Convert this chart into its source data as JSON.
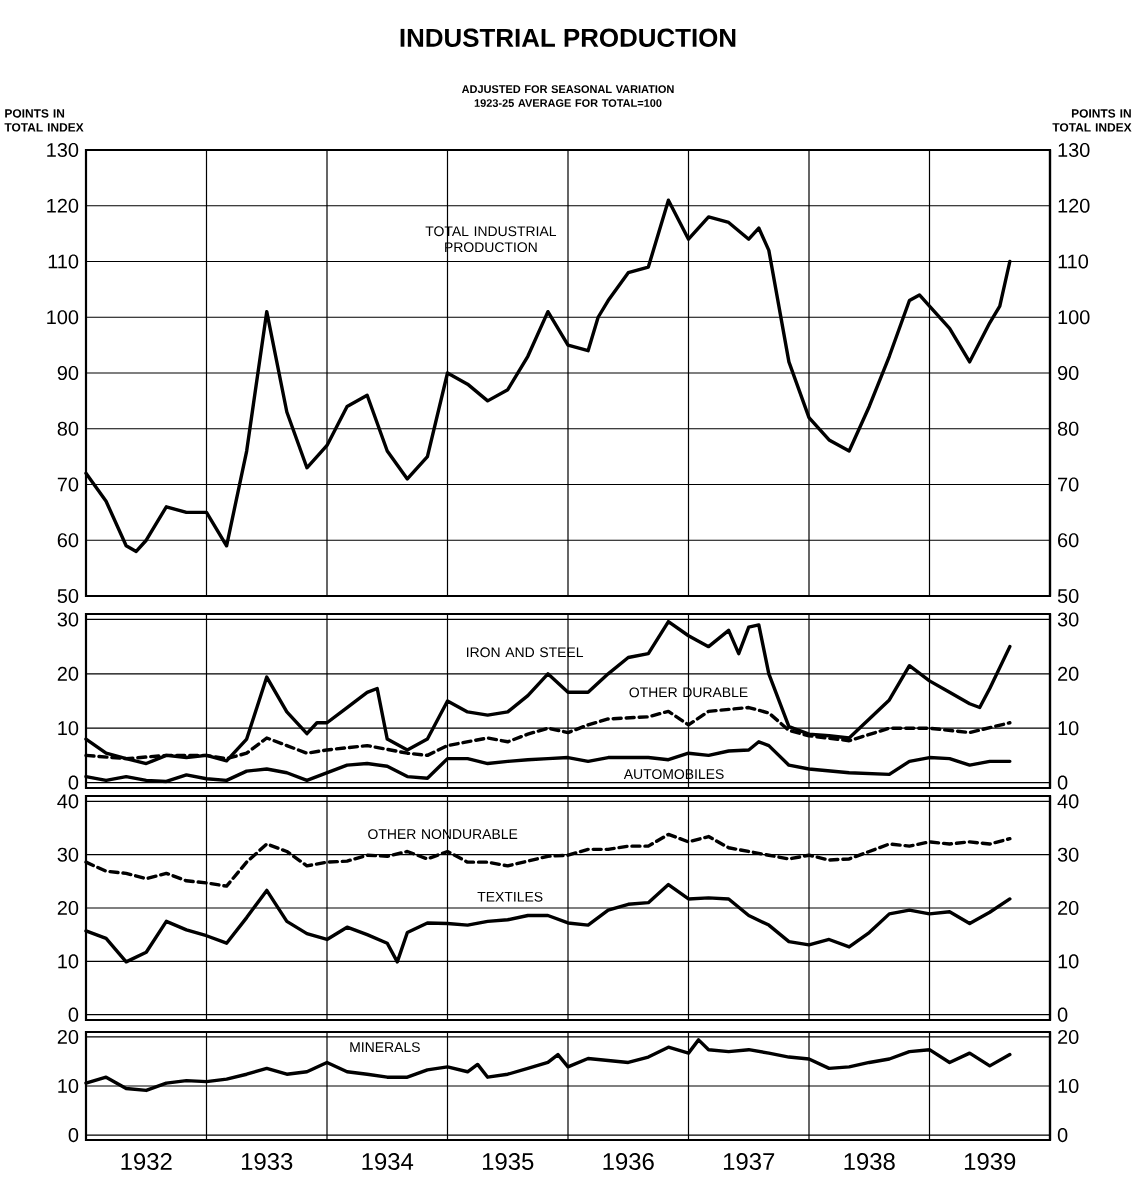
{
  "chart_data": [
    {
      "type": "line",
      "title": "INDUSTRIAL PRODUCTION",
      "subtitle": "ADJUSTED FOR SEASONAL VARIATION 1923-25 AVERAGE FOR TOTAL=100",
      "ylabel": "POINTS IN TOTAL INDEX",
      "y2label": "POINTS IN TOTAL INDEX",
      "grid": true,
      "tick_labels": "y",
      "xlim": [
        "1932-01-01",
        "1940-01-01"
      ],
      "xticks": [
        {
          "value": "1933-01-01",
          "label": null
        },
        {
          "value": "1934-01-01",
          "label": null
        },
        {
          "value": "1935-01-01",
          "label": null
        },
        {
          "value": "1936-01-01",
          "label": null
        },
        {
          "value": "1937-01-01",
          "label": null
        },
        {
          "value": "1938-01-01",
          "label": null
        },
        {
          "value": "1939-01-01",
          "label": null
        }
      ],
      "ylim": [
        50,
        130
      ],
      "yticks": [
        50,
        60,
        70,
        80,
        90,
        100,
        110,
        120,
        130
      ],
      "y2lim": [
        50,
        130
      ],
      "y2ticks": [
        50,
        60,
        70,
        80,
        90,
        100,
        110,
        120,
        130
      ],
      "series": [
        {
          "name": "TOTAL INDUSTRIAL PRODUCTION",
          "color": "#000000",
          "line_style": "solid",
          "x": [
            "1932-01",
            "1932-03",
            "1932-05",
            "1932-06",
            "1932-07",
            "1932-09",
            "1932-11",
            "1933-01",
            "1933-03",
            "1933-05",
            "1933-07",
            "1933-09",
            "1933-11",
            "1934-01",
            "1934-03",
            "1934-05",
            "1934-07",
            "1934-09",
            "1934-11",
            "1935-01",
            "1935-03",
            "1935-05",
            "1935-07",
            "1935-09",
            "1935-11",
            "1936-01",
            "1936-03",
            "1936-04",
            "1936-05",
            "1936-07",
            "1936-09",
            "1936-11",
            "1937-01",
            "1937-03",
            "1937-05",
            "1937-07",
            "1937-08",
            "1937-09",
            "1937-11",
            "1938-01",
            "1938-03",
            "1938-05",
            "1938-07",
            "1938-09",
            "1938-11",
            "1938-12",
            "1939-01",
            "1939-03",
            "1939-05",
            "1939-07",
            "1939-08",
            "1939-09"
          ],
          "values": [
            72,
            67,
            59,
            58,
            60,
            66,
            65,
            65,
            59,
            76,
            101,
            83,
            73,
            77,
            84,
            86,
            76,
            71,
            75,
            90,
            88,
            85,
            87,
            93,
            101,
            95,
            94,
            100,
            103,
            108,
            109,
            121,
            114,
            118,
            117,
            114,
            116,
            112,
            92,
            82,
            78,
            76,
            84,
            93,
            103,
            104,
            102,
            98,
            92,
            99,
            102,
            110
          ]
        }
      ]
    },
    {
      "type": "line",
      "grid": true,
      "tick_labels": "y",
      "xlim": [
        "1932-01-01",
        "1940-01-01"
      ],
      "xticks": [
        {
          "value": "1933-01-01",
          "label": null
        },
        {
          "value": "1934-01-01",
          "label": null
        },
        {
          "value": "1935-01-01",
          "label": null
        },
        {
          "value": "1936-01-01",
          "label": null
        },
        {
          "value": "1937-01-01",
          "label": null
        },
        {
          "value": "1938-01-01",
          "label": null
        },
        {
          "value": "1939-01-01",
          "label": null
        }
      ],
      "ylim": [
        -1,
        31
      ],
      "yticks": [
        0,
        10,
        20,
        30
      ],
      "y2lim": [
        -1,
        31
      ],
      "y2ticks": [
        0,
        10,
        20,
        30
      ],
      "series": [
        {
          "name": "IRON AND STEEL",
          "color": "#000000",
          "line_style": "solid",
          "x": [
            "1932-01",
            "1932-03",
            "1932-05",
            "1932-07",
            "1932-09",
            "1932-11",
            "1933-01",
            "1933-03",
            "1933-05",
            "1933-07",
            "1933-09",
            "1933-11",
            "1933-12",
            "1934-01",
            "1934-03",
            "1934-05",
            "1934-06",
            "1934-07",
            "1934-09",
            "1934-11",
            "1935-01",
            "1935-03",
            "1935-05",
            "1935-07",
            "1935-09",
            "1935-11",
            "1936-01",
            "1936-03",
            "1936-05",
            "1936-07",
            "1936-09",
            "1936-11",
            "1937-01",
            "1937-03",
            "1937-05",
            "1937-06",
            "1937-07",
            "1937-08",
            "1937-09",
            "1937-11",
            "1938-01",
            "1938-03",
            "1938-05",
            "1938-07",
            "1938-09",
            "1938-11",
            "1939-01",
            "1939-03",
            "1939-05",
            "1939-06",
            "1939-07",
            "1939-09"
          ],
          "values": [
            8,
            5.4,
            4.4,
            3.5,
            5,
            4.6,
            5,
            4,
            8,
            19.4,
            13,
            9,
            11,
            11,
            13.8,
            16.6,
            17.3,
            8,
            6,
            8,
            15,
            13,
            12.4,
            13,
            16,
            20,
            16.6,
            16.6,
            20,
            23,
            23.7,
            29.6,
            27,
            25,
            28,
            23.7,
            28.6,
            29,
            20,
            10.3,
            8.9,
            8.6,
            8.2,
            11.7,
            15.2,
            21.5,
            18.7,
            16.6,
            14.5,
            13.8,
            17.3,
            25
          ]
        },
        {
          "name": "OTHER DURABLE",
          "color": "#000000",
          "line_style": "dashed",
          "x": [
            "1932-01",
            "1932-05",
            "1932-09",
            "1933-01",
            "1933-03",
            "1933-05",
            "1933-07",
            "1933-09",
            "1933-11",
            "1934-01",
            "1934-05",
            "1934-09",
            "1934-11",
            "1935-01",
            "1935-05",
            "1935-07",
            "1935-09",
            "1935-11",
            "1936-01",
            "1936-03",
            "1936-05",
            "1936-09",
            "1936-11",
            "1937-01",
            "1937-03",
            "1937-07",
            "1937-09",
            "1937-11",
            "1938-01",
            "1938-05",
            "1938-09",
            "1939-01",
            "1939-05",
            "1939-09"
          ],
          "values": [
            5,
            4.4,
            5,
            5,
            4.4,
            5.4,
            8.2,
            6.8,
            5.4,
            6,
            6.8,
            5.4,
            5,
            6.8,
            8.2,
            7.5,
            8.9,
            10,
            9.2,
            10.6,
            11.7,
            12.1,
            13.1,
            10.6,
            13.1,
            13.8,
            12.8,
            9.6,
            8.6,
            7.7,
            10,
            10,
            9.2,
            11
          ]
        },
        {
          "name": "AUTOMOBILES",
          "color": "#000000",
          "line_style": "solid",
          "x": [
            "1932-01",
            "1932-03",
            "1932-05",
            "1932-07",
            "1932-09",
            "1932-11",
            "1933-01",
            "1933-03",
            "1933-05",
            "1933-07",
            "1933-09",
            "1933-11",
            "1934-01",
            "1934-03",
            "1934-05",
            "1934-07",
            "1934-09",
            "1934-11",
            "1935-01",
            "1935-03",
            "1935-05",
            "1935-07",
            "1935-09",
            "1935-11",
            "1936-01",
            "1936-03",
            "1936-05",
            "1936-09",
            "1936-11",
            "1937-01",
            "1937-03",
            "1937-05",
            "1937-07",
            "1937-08",
            "1937-09",
            "1937-11",
            "1938-01",
            "1938-05",
            "1938-09",
            "1938-11",
            "1939-01",
            "1939-03",
            "1939-05",
            "1939-07",
            "1939-09"
          ],
          "values": [
            1.1,
            0.4,
            1.1,
            0.4,
            0.2,
            1.4,
            0.7,
            0.4,
            2.1,
            2.5,
            1.8,
            0.4,
            1.8,
            3.2,
            3.5,
            3,
            1.1,
            0.8,
            4.4,
            4.4,
            3.5,
            3.9,
            4.2,
            4.4,
            4.6,
            3.9,
            4.6,
            4.6,
            4.2,
            5.4,
            5,
            5.8,
            6,
            7.5,
            6.8,
            3.2,
            2.5,
            1.8,
            1.5,
            3.9,
            4.6,
            4.4,
            3.2,
            3.9,
            3.9
          ]
        }
      ]
    },
    {
      "type": "line",
      "grid": true,
      "tick_labels": "y",
      "xlim": [
        "1932-01-01",
        "1940-01-01"
      ],
      "xticks": [
        {
          "value": "1933-01-01",
          "label": null
        },
        {
          "value": "1934-01-01",
          "label": null
        },
        {
          "value": "1935-01-01",
          "label": null
        },
        {
          "value": "1936-01-01",
          "label": null
        },
        {
          "value": "1937-01-01",
          "label": null
        },
        {
          "value": "1938-01-01",
          "label": null
        },
        {
          "value": "1939-01-01",
          "label": null
        }
      ],
      "ylim": [
        -1,
        41
      ],
      "yticks": [
        0,
        10,
        20,
        30,
        40
      ],
      "y2lim": [
        -1,
        41
      ],
      "y2ticks": [
        0,
        10,
        20,
        30,
        40
      ],
      "series": [
        {
          "name": "OTHER NONDURABLE",
          "color": "#000000",
          "line_style": "dashed",
          "x": [
            "1932-01",
            "1932-03",
            "1932-05",
            "1932-07",
            "1932-09",
            "1932-11",
            "1933-01",
            "1933-03",
            "1933-05",
            "1933-07",
            "1933-09",
            "1933-11",
            "1934-01",
            "1934-03",
            "1934-05",
            "1934-07",
            "1934-09",
            "1934-11",
            "1935-01",
            "1935-03",
            "1935-05",
            "1935-07",
            "1935-09",
            "1935-11",
            "1936-01",
            "1936-03",
            "1936-05",
            "1936-07",
            "1936-09",
            "1936-11",
            "1937-01",
            "1937-03",
            "1937-05",
            "1937-07",
            "1937-09",
            "1937-11",
            "1938-01",
            "1938-03",
            "1938-05",
            "1938-07",
            "1938-09",
            "1938-11",
            "1939-01",
            "1939-03",
            "1939-05",
            "1939-07",
            "1939-09"
          ],
          "values": [
            28.6,
            26.9,
            26.5,
            25.5,
            26.5,
            25.1,
            24.7,
            24.1,
            28.6,
            32,
            30.6,
            27.9,
            28.6,
            28.8,
            29.9,
            29.7,
            30.6,
            29.2,
            30.6,
            28.6,
            28.6,
            27.9,
            28.8,
            29.7,
            29.9,
            31,
            31,
            31.6,
            31.6,
            33.8,
            32.4,
            33.4,
            31.3,
            30.6,
            29.9,
            29.2,
            29.9,
            29,
            29.2,
            30.6,
            32,
            31.6,
            32.4,
            32,
            32.4,
            32,
            33
          ]
        },
        {
          "name": "TEXTILES",
          "color": "#000000",
          "line_style": "solid",
          "x": [
            "1932-01",
            "1932-03",
            "1932-05",
            "1932-07",
            "1932-09",
            "1932-11",
            "1933-01",
            "1933-03",
            "1933-05",
            "1933-07",
            "1933-09",
            "1933-11",
            "1934-01",
            "1934-03",
            "1934-05",
            "1934-07",
            "1934-08",
            "1934-09",
            "1934-11",
            "1935-01",
            "1935-03",
            "1935-05",
            "1935-07",
            "1935-09",
            "1935-11",
            "1936-01",
            "1936-03",
            "1936-05",
            "1936-07",
            "1936-09",
            "1936-11",
            "1937-01",
            "1937-03",
            "1937-05",
            "1937-07",
            "1937-09",
            "1937-11",
            "1938-01",
            "1938-03",
            "1938-05",
            "1938-07",
            "1938-09",
            "1938-11",
            "1939-01",
            "1939-03",
            "1939-05",
            "1939-07",
            "1939-09"
          ],
          "values": [
            15.7,
            14.3,
            9.9,
            11.7,
            17.5,
            15.9,
            14.8,
            13.4,
            18.2,
            23.3,
            17.5,
            15.2,
            14.1,
            16.4,
            15,
            13.4,
            9.9,
            15.4,
            17.2,
            17.1,
            16.8,
            17.5,
            17.8,
            18.6,
            18.6,
            17.2,
            16.8,
            19.6,
            20.7,
            21,
            24.4,
            21.7,
            21.9,
            21.7,
            18.6,
            16.8,
            13.7,
            13.1,
            14.1,
            12.7,
            15.4,
            18.9,
            19.6,
            18.9,
            19.3,
            17.1,
            19.2,
            21.7
          ]
        }
      ]
    },
    {
      "type": "line",
      "grid": true,
      "xlim": [
        "1932-01-01",
        "1940-01-01"
      ],
      "xticks": [
        {
          "value": "1933-01-01",
          "label": null
        },
        {
          "value": "1934-01-01",
          "label": null
        },
        {
          "value": "1935-01-01",
          "label": null
        },
        {
          "value": "1936-01-01",
          "label": null
        },
        {
          "value": "1937-01-01",
          "label": null
        },
        {
          "value": "1938-01-01",
          "label": null
        },
        {
          "value": "1939-01-01",
          "label": null
        },
        {
          "value": "1932-07-01",
          "label": "1932"
        },
        {
          "value": "1933-07-01",
          "label": "1933"
        },
        {
          "value": "1934-07-01",
          "label": "1934"
        },
        {
          "value": "1935-07-01",
          "label": "1935"
        },
        {
          "value": "1936-07-01",
          "label": "1936"
        },
        {
          "value": "1937-07-01",
          "label": "1937"
        },
        {
          "value": "1938-07-01",
          "label": "1938"
        },
        {
          "value": "1939-07-01",
          "label": "1939"
        }
      ],
      "ylim": [
        -1,
        21
      ],
      "yticks": [
        0,
        10,
        20
      ],
      "y2lim": [
        -1,
        21
      ],
      "y2ticks": [
        0,
        10,
        20
      ],
      "series": [
        {
          "name": "MINERALS",
          "color": "#000000",
          "line_style": "solid",
          "x": [
            "1932-01",
            "1932-03",
            "1932-05",
            "1932-07",
            "1932-09",
            "1932-11",
            "1933-01",
            "1933-03",
            "1933-05",
            "1933-07",
            "1933-09",
            "1933-11",
            "1934-01",
            "1934-03",
            "1934-05",
            "1934-07",
            "1934-09",
            "1934-11",
            "1935-01",
            "1935-03",
            "1935-04",
            "1935-05",
            "1935-07",
            "1935-09",
            "1935-11",
            "1935-12",
            "1936-01",
            "1936-03",
            "1936-05",
            "1936-07",
            "1936-09",
            "1936-11",
            "1937-01",
            "1937-02",
            "1937-03",
            "1937-05",
            "1937-07",
            "1937-09",
            "1937-11",
            "1938-01",
            "1938-03",
            "1938-05",
            "1938-07",
            "1938-09",
            "1938-11",
            "1939-01",
            "1939-03",
            "1939-05",
            "1939-07",
            "1939-09"
          ],
          "values": [
            10.6,
            11.8,
            9.5,
            9.1,
            10.6,
            11.1,
            10.9,
            11.4,
            12.4,
            13.6,
            12.4,
            12.9,
            14.8,
            12.9,
            12.4,
            11.8,
            11.8,
            13.3,
            13.9,
            12.9,
            14.4,
            11.8,
            12.4,
            13.6,
            14.8,
            16.4,
            13.9,
            15.6,
            15.2,
            14.8,
            15.9,
            17.9,
            16.7,
            19.4,
            17.4,
            17,
            17.4,
            16.7,
            15.9,
            15.5,
            13.6,
            13.9,
            14.8,
            15.5,
            17,
            17.4,
            14.8,
            16.7,
            14.1,
            16.4
          ]
        }
      ]
    }
  ]
}
